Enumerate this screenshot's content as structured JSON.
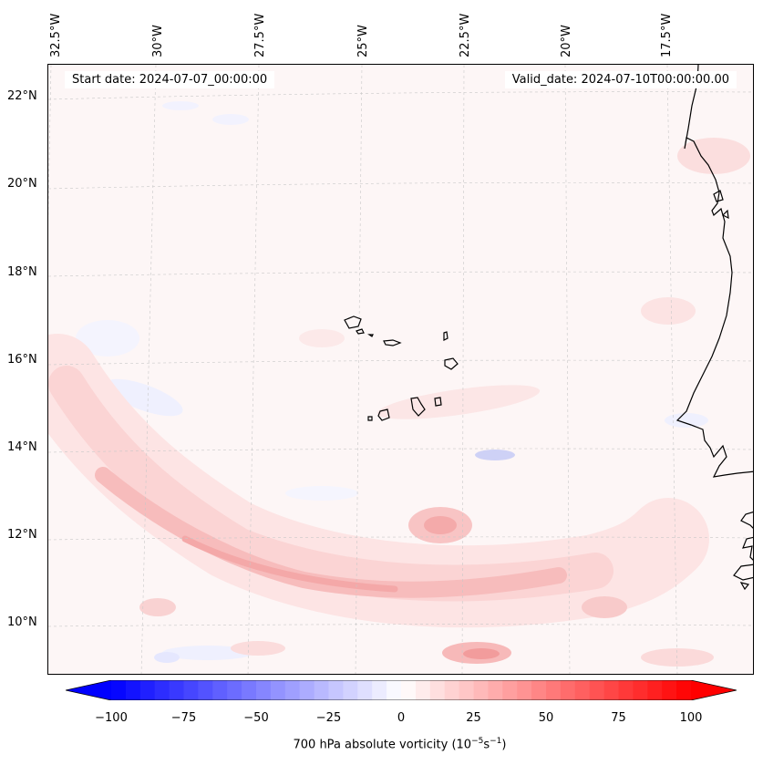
{
  "map": {
    "start_date": "Start date: 2024-07-07_00:00:00",
    "valid_date": "Valid_date: 2024-07-10T00:00:00.00",
    "field": "700 hPa absolute vorticity",
    "lon_labels": [
      "32.5°W",
      "30°W",
      "27.5°W",
      "25°W",
      "22.5°W",
      "20°W",
      "17.5°W"
    ],
    "lat_labels": [
      "22°N",
      "20°N",
      "18°N",
      "16°N",
      "14°N",
      "12°N",
      "10°N"
    ],
    "colors": {
      "max_red": "#ff0000",
      "max_blue": "#0000ff",
      "background": "#fdf6f6",
      "coast": "#000000"
    }
  },
  "colorbar": {
    "min": -100,
    "max": 100,
    "ticks": [
      "−100",
      "−75",
      "−50",
      "−25",
      "0",
      "25",
      "50",
      "75",
      "100"
    ],
    "label": "700 hPa absolute vorticity (10",
    "label_exp1": "−5",
    "label_mid": "s",
    "label_exp2": "−1",
    "label_end": ")"
  }
}
